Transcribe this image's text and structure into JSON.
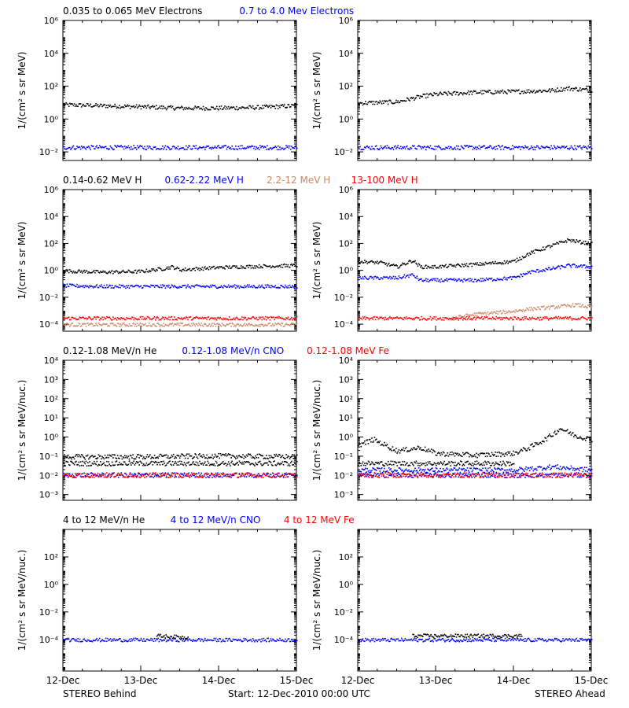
{
  "footer": {
    "left": "STEREO Behind",
    "center": "Start: 12-Dec-2010 00:00 UTC",
    "right": "STEREO Ahead"
  },
  "colors": {
    "black": "#000000",
    "blue": "#0000ff",
    "tan": "#cc8866",
    "red": "#ff0000"
  },
  "x_ticks": [
    "12-Dec",
    "13-Dec",
    "14-Dec",
    "15-Dec"
  ],
  "chart_data": [
    {
      "type": "scatter",
      "row": 1,
      "column": "left",
      "title_labels": [
        {
          "text": "0.035 to 0.065 MeV Electrons",
          "color": "#000000"
        },
        {
          "text": "0.7 to 4.0 Mev Electrons",
          "color": "#0000ff"
        }
      ],
      "ylabel": "1/(cm² s sr MeV)",
      "yscale": "log",
      "ylim": [
        0.003,
        1000000
      ],
      "y_tick_labels": [
        "10⁻²",
        "10⁰",
        "10²",
        "10⁴",
        "10⁶"
      ],
      "xlim": [
        "2010-12-12",
        "2010-12-15"
      ],
      "series": [
        {
          "color": "#000000",
          "x": [
            0,
            0.5,
            1,
            1.5,
            2,
            2.5,
            3
          ],
          "y": [
            8,
            7,
            6,
            5,
            5,
            5.5,
            7
          ]
        },
        {
          "color": "#0000ff",
          "x": [
            0,
            0.5,
            1,
            1.5,
            2,
            2.5,
            3
          ],
          "y": [
            0.02,
            0.02,
            0.02,
            0.02,
            0.02,
            0.02,
            0.02
          ]
        }
      ]
    },
    {
      "type": "scatter",
      "row": 1,
      "column": "right",
      "title_labels": [],
      "ylabel": "1/(cm² s sr MeV)",
      "yscale": "log",
      "ylim": [
        0.003,
        1000000
      ],
      "y_tick_labels": [
        "10⁻²",
        "10⁰",
        "10²",
        "10⁴",
        "10⁶"
      ],
      "xlim": [
        "2010-12-12",
        "2010-12-15"
      ],
      "series": [
        {
          "color": "#000000",
          "x": [
            0,
            0.5,
            0.8,
            1,
            1.5,
            2,
            2.5,
            2.7,
            3
          ],
          "y": [
            10,
            12,
            25,
            35,
            45,
            50,
            60,
            80,
            60
          ]
        },
        {
          "color": "#0000ff",
          "x": [
            0,
            0.5,
            1,
            1.5,
            2,
            2.5,
            3
          ],
          "y": [
            0.02,
            0.02,
            0.02,
            0.02,
            0.02,
            0.02,
            0.02
          ]
        }
      ]
    },
    {
      "type": "scatter",
      "row": 2,
      "column": "left",
      "title_labels": [
        {
          "text": "0.14-0.62 MeV H",
          "color": "#000000"
        },
        {
          "text": "0.62-2.22 MeV H",
          "color": "#0000ff"
        },
        {
          "text": "2.2-12 MeV H",
          "color": "#cc8866"
        },
        {
          "text": "13-100 MeV H",
          "color": "#ff0000"
        }
      ],
      "ylabel": "1/(cm² s sr MeV)",
      "yscale": "log",
      "ylim": [
        3e-05,
        1000000
      ],
      "y_tick_labels": [
        "10⁻⁴",
        "10⁻²",
        "10⁰",
        "10²",
        "10⁴",
        "10⁶"
      ],
      "xlim": [
        "2010-12-12",
        "2010-12-15"
      ],
      "series": [
        {
          "color": "#000000",
          "x": [
            0,
            0.5,
            1,
            1.3,
            1.4,
            1.5,
            2,
            2.5,
            3
          ],
          "y": [
            1,
            0.8,
            0.9,
            1.5,
            2,
            1.2,
            1.8,
            2.2,
            2.5
          ]
        },
        {
          "color": "#0000ff",
          "x": [
            0,
            0.5,
            1,
            1.5,
            2,
            2.5,
            3
          ],
          "y": [
            0.08,
            0.07,
            0.07,
            0.07,
            0.07,
            0.07,
            0.07
          ]
        },
        {
          "color": "#cc8866",
          "x": [
            0,
            1,
            2,
            3
          ],
          "y": [
            0.0001,
            0.0001,
            0.0001,
            0.0001
          ]
        },
        {
          "color": "#ff0000",
          "x": [
            0,
            1,
            2,
            3
          ],
          "y": [
            0.0003,
            0.0003,
            0.0003,
            0.0003
          ]
        }
      ]
    },
    {
      "type": "scatter",
      "row": 2,
      "column": "right",
      "title_labels": [],
      "ylabel": "1/(cm² s sr MeV)",
      "yscale": "log",
      "ylim": [
        3e-05,
        1000000
      ],
      "y_tick_labels": [
        "10⁻⁴",
        "10⁻²",
        "10⁰",
        "10²",
        "10⁴",
        "10⁶"
      ],
      "xlim": [
        "2010-12-12",
        "2010-12-15"
      ],
      "series": [
        {
          "color": "#000000",
          "x": [
            0,
            0.3,
            0.5,
            0.7,
            0.8,
            1,
            1.5,
            2,
            2.2,
            2.5,
            2.7,
            3
          ],
          "y": [
            5,
            4,
            2,
            6,
            2,
            2,
            3,
            5,
            20,
            80,
            200,
            100
          ]
        },
        {
          "color": "#0000ff",
          "x": [
            0,
            0.5,
            0.7,
            0.8,
            1,
            1.5,
            2,
            2.2,
            2.5,
            2.7,
            3
          ],
          "y": [
            0.3,
            0.3,
            0.5,
            0.2,
            0.2,
            0.2,
            0.3,
            0.8,
            1.5,
            2.5,
            2
          ]
        },
        {
          "color": "#cc8866",
          "x": [
            1.2,
            1.5,
            2,
            2.2,
            2.5,
            2.8,
            3
          ],
          "y": [
            0.0003,
            0.0006,
            0.001,
            0.0015,
            0.002,
            0.003,
            0.002
          ]
        },
        {
          "color": "#ff0000",
          "x": [
            0,
            1,
            2,
            3
          ],
          "y": [
            0.0003,
            0.0003,
            0.0003,
            0.0003
          ]
        }
      ]
    },
    {
      "type": "scatter",
      "row": 3,
      "column": "left",
      "title_labels": [
        {
          "text": "0.12-1.08 MeV/n He",
          "color": "#000000"
        },
        {
          "text": "0.12-1.08 MeV/n CNO",
          "color": "#0000ff"
        },
        {
          "text": "0.12-1.08 MeV Fe",
          "color": "#ff0000"
        }
      ],
      "ylabel": "1/(cm² s sr MeV/nuc.)",
      "yscale": "log",
      "ylim": [
        0.0005,
        10000
      ],
      "y_tick_labels": [
        "10⁻³",
        "10⁻²",
        "10⁻¹",
        "10⁰",
        "10¹",
        "10²",
        "10³",
        "10⁴"
      ],
      "xlim": [
        "2010-12-12",
        "2010-12-15"
      ],
      "series": [
        {
          "color": "#000000",
          "x": [
            0,
            1,
            2,
            3
          ],
          "y": [
            0.045,
            0.045,
            0.045,
            0.045
          ]
        },
        {
          "color": "#000000",
          "x": [
            0,
            1,
            2,
            3
          ],
          "y": [
            0.1,
            0.1,
            0.11,
            0.1
          ]
        },
        {
          "color": "#0000ff",
          "x": [
            0,
            1,
            2,
            3
          ],
          "y": [
            0.011,
            0.011,
            0.011,
            0.011
          ]
        },
        {
          "color": "#ff0000",
          "x": [
            0,
            1,
            2,
            3
          ],
          "y": [
            0.011,
            0.011,
            0.011,
            0.011
          ]
        }
      ]
    },
    {
      "type": "scatter",
      "row": 3,
      "column": "right",
      "title_labels": [],
      "ylabel": "1/(cm² s sr MeV/nuc.)",
      "yscale": "log",
      "ylim": [
        0.0005,
        10000
      ],
      "y_tick_labels": [
        "10⁻³",
        "10⁻²",
        "10⁻¹",
        "10⁰",
        "10¹",
        "10²",
        "10³",
        "10⁴"
      ],
      "xlim": [
        "2010-12-12",
        "2010-12-15"
      ],
      "series": [
        {
          "color": "#000000",
          "x": [
            0,
            0.2,
            0.3,
            0.5,
            0.8,
            1,
            1.5,
            2,
            2.2,
            2.4,
            2.5,
            2.6,
            2.8,
            3
          ],
          "y": [
            0.4,
            0.8,
            0.5,
            0.2,
            0.3,
            0.15,
            0.12,
            0.15,
            0.3,
            0.8,
            1.5,
            3,
            1.2,
            0.8
          ]
        },
        {
          "color": "#000000",
          "x": [
            0,
            0.5,
            1,
            1.5,
            2
          ],
          "y": [
            0.045,
            0.045,
            0.045,
            0.045,
            0.045
          ]
        },
        {
          "color": "#0000ff",
          "x": [
            0,
            1,
            2,
            3
          ],
          "y": [
            0.011,
            0.011,
            0.011,
            0.011
          ]
        },
        {
          "color": "#0000ff",
          "x": [
            0,
            1,
            2,
            2.5,
            3
          ],
          "y": [
            0.02,
            0.02,
            0.02,
            0.03,
            0.02
          ]
        },
        {
          "color": "#ff0000",
          "x": [
            0,
            1,
            2,
            3
          ],
          "y": [
            0.011,
            0.011,
            0.011,
            0.011
          ]
        }
      ]
    },
    {
      "type": "scatter",
      "row": 4,
      "column": "left",
      "title_labels": [
        {
          "text": "4 to 12 MeV/n He",
          "color": "#000000"
        },
        {
          "text": "4 to 12 MeV/n CNO",
          "color": "#0000ff"
        },
        {
          "text": "4 to 12 MeV Fe",
          "color": "#ff0000"
        }
      ],
      "ylabel": "1/(cm² s sr MeV/nuc.)",
      "yscale": "log",
      "ylim": [
        5e-07,
        10000
      ],
      "y_tick_labels": [
        "10⁻⁴",
        "10⁻²",
        "10⁰",
        "10²"
      ],
      "xlim": [
        "2010-12-12",
        "2010-12-15"
      ],
      "series": [
        {
          "color": "#0000ff",
          "x": [
            0,
            1,
            2,
            3
          ],
          "y": [
            0.0001,
            0.0001,
            0.0001,
            0.0001
          ]
        },
        {
          "color": "#000000",
          "x": [
            1.2,
            1.6
          ],
          "y": [
            0.0002,
            0.00015
          ]
        }
      ]
    },
    {
      "type": "scatter",
      "row": 4,
      "column": "right",
      "title_labels": [],
      "ylabel": "1/(cm² s sr MeV/nuc.)",
      "yscale": "log",
      "ylim": [
        5e-07,
        10000
      ],
      "y_tick_labels": [
        "10⁻⁴",
        "10⁻²",
        "10⁰",
        "10²"
      ],
      "xlim": [
        "2010-12-12",
        "2010-12-15"
      ],
      "series": [
        {
          "color": "#0000ff",
          "x": [
            0,
            1,
            2,
            3
          ],
          "y": [
            0.0001,
            0.0001,
            0.0001,
            0.0001
          ]
        },
        {
          "color": "#000000",
          "x": [
            0.7,
            1.5,
            2.1
          ],
          "y": [
            0.0002,
            0.0002,
            0.0002
          ]
        }
      ]
    }
  ]
}
